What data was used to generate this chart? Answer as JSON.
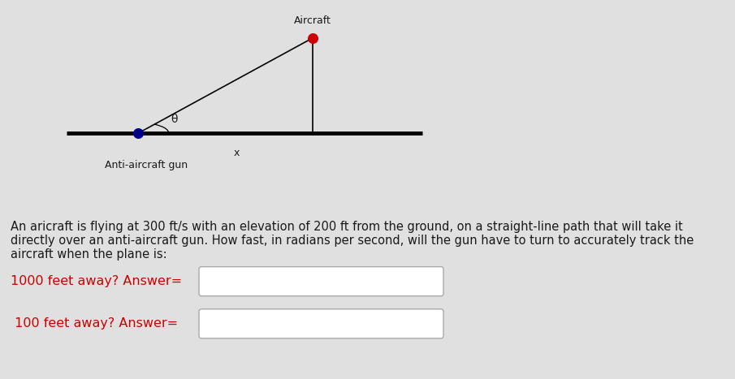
{
  "bg_color": "#e0e0e0",
  "diagram_bg": "#ffffff",
  "gun_color": "#00008B",
  "aircraft_color": "#cc0000",
  "gun_label": "Anti-aircraft gun",
  "aircraft_label": "Aircraft",
  "theta_label": "θ",
  "x_label": "x",
  "line_color": "#000000",
  "ground_linewidth": 3.5,
  "hyp_linewidth": 1.2,
  "vert_linewidth": 1.2,
  "dot_size": 70,
  "paragraph_line1": "An aricraft is flying at 300 ft/s with an elevation of 200 ft from the ground, on a straight-line path that will take it",
  "paragraph_line2": "directly over an anti-aircraft gun. How fast, in radians per second, will the gun have to turn to accurately track the",
  "paragraph_line3": "aircraft when the plane is:",
  "q1_text": "1000 feet away? Answer=",
  "q2_text": " 100 feet away? Answer=",
  "text_color": "#1a1a1a",
  "red_text_color": "#cc0000",
  "font_size_para": 10.5,
  "font_size_q": 11.5
}
